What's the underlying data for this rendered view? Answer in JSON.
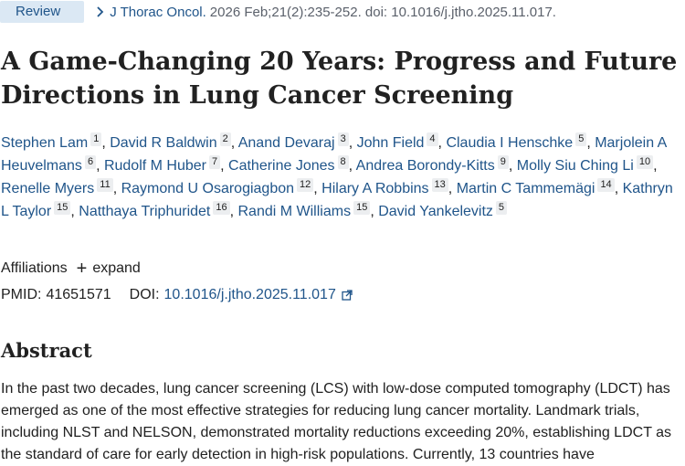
{
  "header": {
    "badge": "Review",
    "journal": "J Thorac Oncol.",
    "citation": "2026 Feb;21(2):235-252. doi: 10.1016/j.jtho.2025.11.017."
  },
  "title": "A Game-Changing 20 Years: Progress and Future Directions in Lung Cancer Screening",
  "authors": [
    {
      "name": "Stephen Lam",
      "aff": "1"
    },
    {
      "name": "David R Baldwin",
      "aff": "2"
    },
    {
      "name": "Anand Devaraj",
      "aff": "3"
    },
    {
      "name": "John Field",
      "aff": "4"
    },
    {
      "name": "Claudia I Henschke",
      "aff": "5"
    },
    {
      "name": "Marjolein A Heuvelmans",
      "aff": "6"
    },
    {
      "name": "Rudolf M Huber",
      "aff": "7"
    },
    {
      "name": "Catherine Jones",
      "aff": "8"
    },
    {
      "name": "Andrea Borondy-Kitts",
      "aff": "9"
    },
    {
      "name": "Molly Siu Ching Li",
      "aff": "10"
    },
    {
      "name": "Renelle Myers",
      "aff": "11"
    },
    {
      "name": "Raymond U Osarogiagbon",
      "aff": "12"
    },
    {
      "name": "Hilary A Robbins",
      "aff": "13"
    },
    {
      "name": "Martin C Tammemägi",
      "aff": "14"
    },
    {
      "name": "Kathryn L Taylor",
      "aff": "15"
    },
    {
      "name": "Natthaya Triphuridet",
      "aff": "16"
    },
    {
      "name": "Randi M Williams",
      "aff": "15"
    },
    {
      "name": "David Yankelevitz",
      "aff": "5"
    }
  ],
  "affiliations": {
    "label": "Affiliations",
    "expand": "expand"
  },
  "identifiers": {
    "pmid_label": "PMID:",
    "pmid": "41651571",
    "doi_label": "DOI:",
    "doi": "10.1016/j.jtho.2025.11.017"
  },
  "abstract": {
    "heading": "Abstract",
    "text": "In the past two decades, lung cancer screening (LCS) with low-dose computed tomography (LDCT) has emerged as one of the most effective strategies for reducing lung cancer mortality. Landmark trials, including NLST and NELSON, demonstrated mortality reductions exceeding 20%, establishing LDCT as the standard of care for early detection in high-risk populations. Currently, 13 countries have"
  },
  "colors": {
    "link": "#20558a",
    "badge_bg": "#dbe8f4",
    "text": "#212121",
    "muted": "#5b616b"
  },
  "icons": {
    "breadcrumb": "chevron-right-icon",
    "expand": "plus-icon",
    "doi_link": "external-link-icon"
  }
}
